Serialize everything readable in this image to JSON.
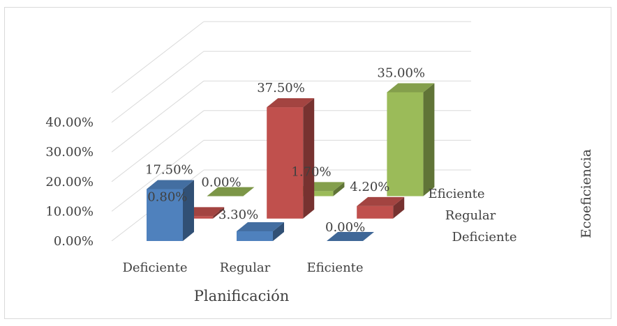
{
  "chart_data": {
    "type": "bar",
    "subtype": "3d-clustered-column",
    "xlabel": "Planificación",
    "zlabel": "Ecoeficiencia",
    "categories": [
      "Deficiente",
      "Regular",
      "Eficiente"
    ],
    "series": [
      {
        "name": "Deficiente",
        "values": [
          17.5,
          3.3,
          0.0
        ],
        "labels": [
          "17.50%",
          "3.30%",
          "0.00%"
        ],
        "color": "#4f81bd"
      },
      {
        "name": "Regular",
        "values": [
          0.8,
          37.5,
          4.2
        ],
        "labels": [
          "0.80%",
          "37.50%",
          "4.20%"
        ],
        "color": "#c0504d"
      },
      {
        "name": "Eficiente",
        "values": [
          0.0,
          1.7,
          35.0
        ],
        "labels": [
          "0.00%",
          "1.70%",
          "35.00%"
        ],
        "color": "#9bbb59"
      }
    ],
    "yticks": [
      "0.00%",
      "10.00%",
      "20.00%",
      "30.00%",
      "40.00%"
    ],
    "ylim": [
      0,
      40
    ],
    "grid": true,
    "legend": "none"
  }
}
